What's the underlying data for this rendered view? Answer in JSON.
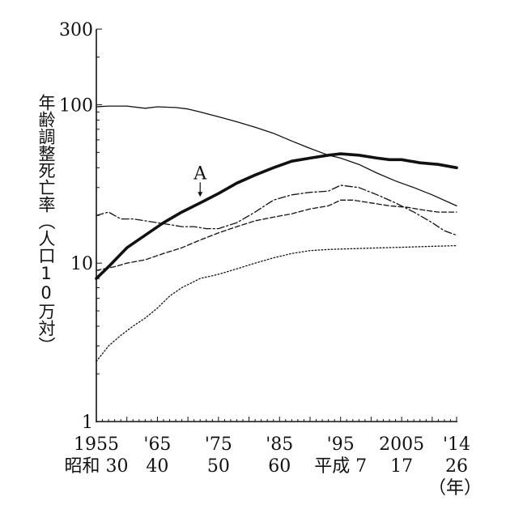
{
  "chart_data": {
    "type": "line",
    "title": "",
    "ylabel": "年齢調整死亡率（人口10万対）",
    "xlabel": "",
    "y_scale": "log",
    "ylim": [
      1,
      300
    ],
    "xlim": [
      1955,
      2014
    ],
    "y_ticks": [
      {
        "value": 1,
        "label": "1"
      },
      {
        "value": 10,
        "label": "10"
      },
      {
        "value": 100,
        "label": "100"
      },
      {
        "value": 300,
        "label": "300"
      }
    ],
    "x_ticks": [
      {
        "value": 1955,
        "label1": "1955",
        "label2": "昭和 30"
      },
      {
        "value": 1965,
        "label1": "'65",
        "label2": "40"
      },
      {
        "value": 1975,
        "label1": "'75",
        "label2": "50"
      },
      {
        "value": 1985,
        "label1": "'85",
        "label2": "60"
      },
      {
        "value": 1995,
        "label1": "'95",
        "label2": "平成 7"
      },
      {
        "value": 2005,
        "label1": "2005",
        "label2": "17"
      },
      {
        "value": 2014,
        "label1": "'14",
        "label2": "26"
      }
    ],
    "x_unit_label": "（年）",
    "annotation": {
      "text": "A",
      "x": 1972,
      "y": 25
    },
    "series": [
      {
        "style": "thick-solid",
        "x": [
          1955,
          1957,
          1960,
          1963,
          1966,
          1969,
          1972,
          1975,
          1978,
          1981,
          1984,
          1987,
          1990,
          1993,
          1995,
          1998,
          2001,
          2003,
          2005,
          2008,
          2011,
          2014
        ],
        "values": [
          8,
          9.5,
          12.5,
          15,
          18,
          21,
          24,
          27.5,
          32,
          36,
          40,
          44,
          46,
          48,
          49,
          48,
          46,
          45,
          45,
          43,
          42,
          40
        ]
      },
      {
        "style": "thin-solid",
        "x": [
          1955,
          1957,
          1960,
          1963,
          1965,
          1968,
          1970,
          1972,
          1975,
          1978,
          1981,
          1984,
          1987,
          1990,
          1993,
          1995,
          1998,
          2001,
          2004,
          2007,
          2010,
          2014
        ],
        "values": [
          97,
          98,
          98,
          95,
          97,
          96,
          94,
          90,
          84,
          78,
          72,
          66,
          59,
          53,
          48,
          46,
          42,
          37,
          33,
          30,
          27,
          23
        ]
      },
      {
        "style": "dash-dot",
        "x": [
          1955,
          1957,
          1959,
          1961,
          1963,
          1965,
          1967,
          1969,
          1971,
          1973,
          1975,
          1978,
          1981,
          1984,
          1987,
          1990,
          1993,
          1995,
          1998,
          2001,
          2004,
          2007,
          2010,
          2012,
          2014
        ],
        "values": [
          20,
          21,
          19,
          19,
          18.5,
          18,
          17.5,
          17,
          17,
          16.5,
          16.5,
          18,
          21,
          25,
          27,
          28,
          28.5,
          31,
          30,
          27,
          24,
          21,
          18,
          16,
          15
        ]
      },
      {
        "style": "dashed",
        "x": [
          1955,
          1958,
          1960,
          1963,
          1966,
          1969,
          1972,
          1975,
          1978,
          1981,
          1984,
          1987,
          1990,
          1993,
          1995,
          1997,
          2000,
          2003,
          2006,
          2009,
          2011,
          2014
        ],
        "values": [
          9,
          9.5,
          10,
          10.5,
          11.5,
          12.5,
          14,
          15.5,
          17,
          18.5,
          19.5,
          20.5,
          22,
          23,
          25,
          25,
          24,
          23,
          22.5,
          21.5,
          21,
          21
        ]
      },
      {
        "style": "dotted",
        "x": [
          1955,
          1957,
          1959,
          1961,
          1963,
          1965,
          1967,
          1969,
          1972,
          1975,
          1978,
          1981,
          1984,
          1987,
          1990,
          1993,
          1996,
          1999,
          2002,
          2005,
          2008,
          2011,
          2014
        ],
        "values": [
          2.4,
          3,
          3.5,
          4,
          4.5,
          5.2,
          6.2,
          7,
          8,
          8.5,
          9.2,
          10,
          10.8,
          11.5,
          12,
          12.2,
          12.3,
          12.4,
          12.5,
          12.6,
          12.7,
          12.8,
          12.9
        ]
      }
    ]
  }
}
